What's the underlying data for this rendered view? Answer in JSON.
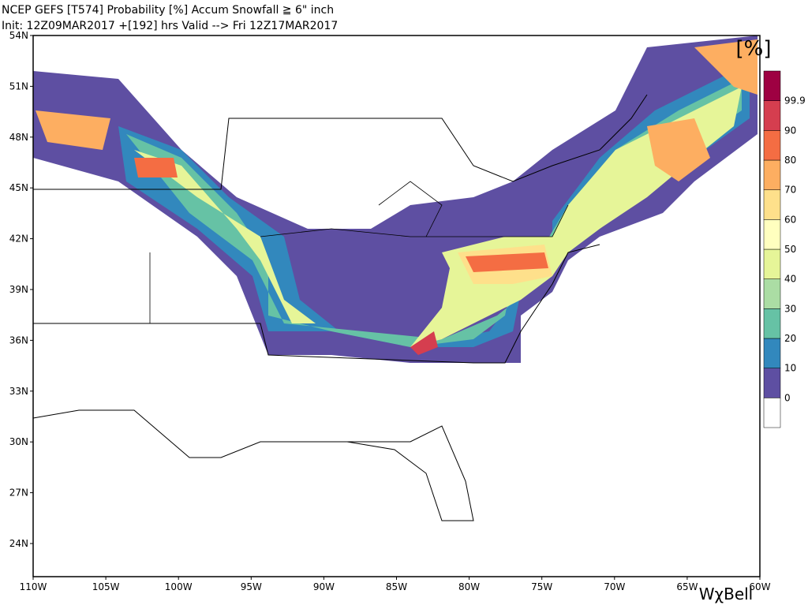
{
  "header": {
    "title": "NCEP GEFS [T574] Probability [%] Accum Snowfall ≧ 6\" inch",
    "subtitle": "Init: 12Z09MAR2017   +[192] hrs Valid --> Fri 12Z17MAR2017"
  },
  "map": {
    "lat_labels": [
      "54N",
      "51N",
      "48N",
      "45N",
      "42N",
      "39N",
      "36N",
      "33N",
      "30N",
      "27N",
      "24N"
    ],
    "lon_labels": [
      "110W",
      "105W",
      "100W",
      "95W",
      "90W",
      "85W",
      "80W",
      "75W",
      "70W",
      "65W",
      "60W"
    ]
  },
  "colorbar": {
    "unit": "[%]",
    "labels": [
      "0",
      "10",
      "20",
      "30",
      "40",
      "50",
      "60",
      "70",
      "80",
      "90",
      "99.9"
    ],
    "colors": [
      "#ffffff",
      "#5e4fa2",
      "#3288bd",
      "#66c2a5",
      "#abdda4",
      "#e6f598",
      "#ffffbf",
      "#fee08b",
      "#fdae61",
      "#f46d43",
      "#d53e4f",
      "#9e0142"
    ]
  },
  "logo": "WχBell"
}
